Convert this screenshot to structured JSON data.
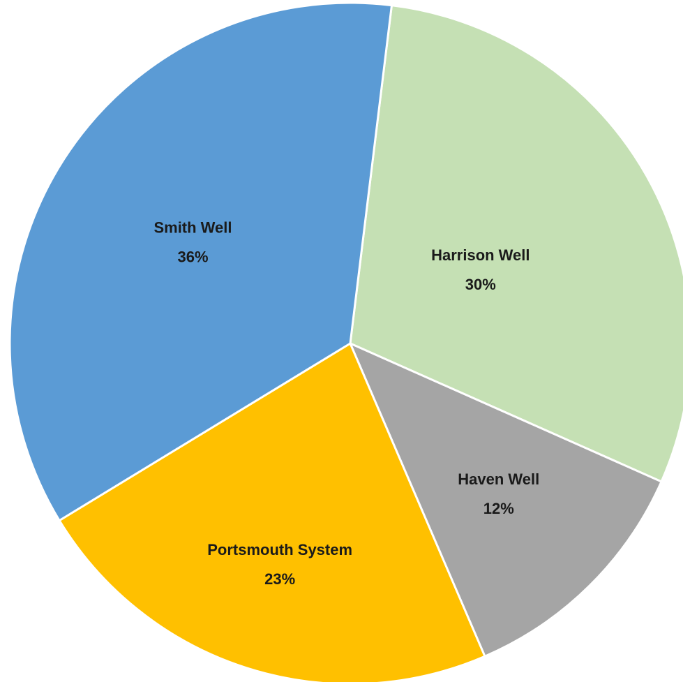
{
  "chart_data": {
    "type": "pie",
    "title": "",
    "legend": "none",
    "slices": [
      {
        "label": "Harrison Well",
        "value": 30,
        "display": "30%",
        "color": "#c5e0b4"
      },
      {
        "label": "Haven Well",
        "value": 12,
        "display": "12%",
        "color": "#a5a5a5"
      },
      {
        "label": "Portsmouth System",
        "value": 23,
        "display": "23%",
        "color": "#ffc000"
      },
      {
        "label": "Smith Well",
        "value": 36,
        "display": "36%",
        "color": "#5b9bd5"
      }
    ]
  }
}
